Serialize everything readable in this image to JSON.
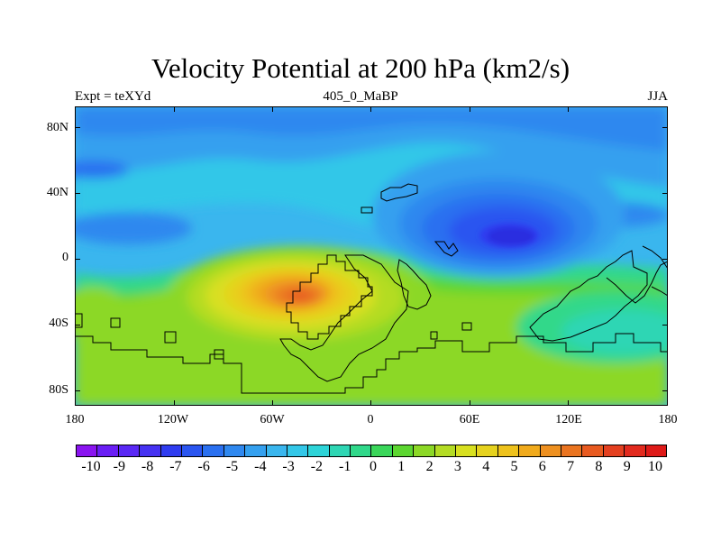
{
  "title": "Velocity Potential at 200 hPa (km2/s)",
  "subtitle_left": "Expt = teXYd",
  "subtitle_center": "405_0_MaBP",
  "subtitle_right": "JJA",
  "y_axis_labels": [
    "80N",
    "40N",
    "0",
    "40S",
    "80S"
  ],
  "x_axis_labels": [
    "180",
    "120W",
    "60W",
    "0",
    "60E",
    "120E",
    "180"
  ],
  "colorbar": {
    "labels": [
      "-10",
      "-9",
      "-8",
      "-7",
      "-6",
      "-5",
      "-4",
      "-3",
      "-2",
      "-1",
      "0",
      "1",
      "2",
      "3",
      "4",
      "5",
      "6",
      "7",
      "8",
      "9",
      "10"
    ],
    "colors": [
      "#8a14f0",
      "#6a1ef5",
      "#5a28f5",
      "#4632f2",
      "#2f3cf0",
      "#2a55f0",
      "#2a70f0",
      "#2f88ef",
      "#34a0ef",
      "#3ab6ee",
      "#33c7e8",
      "#2dd4d8",
      "#2ed6b4",
      "#30d88a",
      "#3ad65a",
      "#5cd630",
      "#8cd826",
      "#b4dc24",
      "#d8e020",
      "#e6d21e",
      "#eec21c",
      "#f0aa1c",
      "#ee9020",
      "#ea7420",
      "#e85a20",
      "#e44020",
      "#e22a1e",
      "#de1a18"
    ]
  }
}
